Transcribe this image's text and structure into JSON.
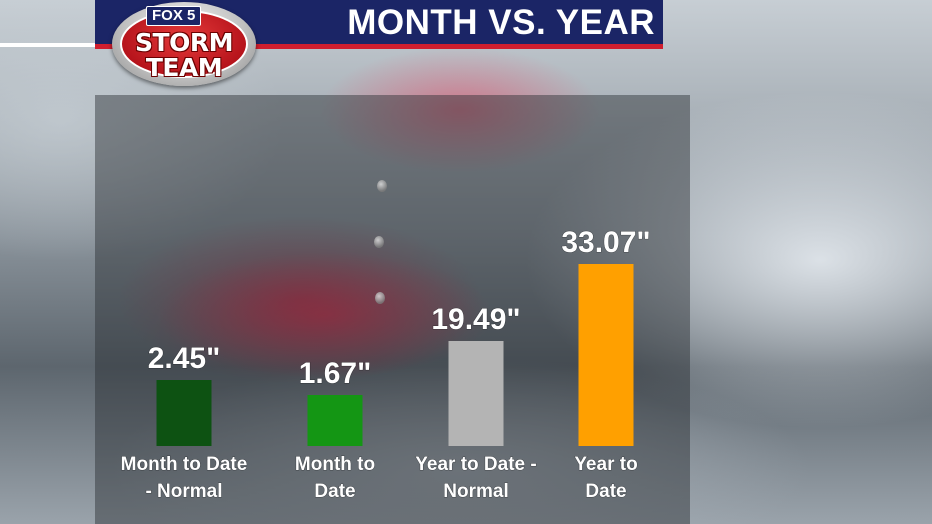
{
  "header": {
    "title": "MONTH VS. YEAR",
    "logo": {
      "top": "FOX 5",
      "line1": "STORM",
      "line2": "TEAM"
    }
  },
  "colors": {
    "title_bar": "#1b2566",
    "title_accent": "#d01e2e"
  },
  "chart_data": {
    "type": "bar",
    "title": "MONTH VS. YEAR",
    "categories": [
      [
        "Month to Date",
        "- Normal"
      ],
      [
        "Month to",
        "Date"
      ],
      [
        "Year to Date -",
        "Normal"
      ],
      [
        "Year to",
        "Date"
      ]
    ],
    "values": [
      2.45,
      1.67,
      19.49,
      33.07
    ],
    "value_labels": [
      "2.45\"",
      "1.67\"",
      "19.49\"",
      "33.07\""
    ],
    "colors": [
      "#0d5212",
      "#149614",
      "#b4b4b4",
      "#ffa000"
    ],
    "unit": "inches",
    "grid": false,
    "legend": "none"
  }
}
